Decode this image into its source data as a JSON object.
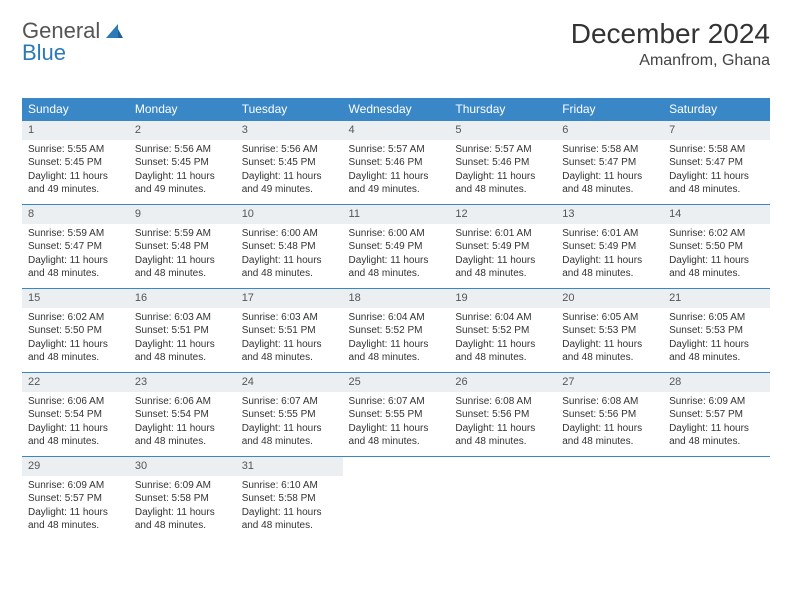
{
  "logo": {
    "word1": "General",
    "word2": "Blue"
  },
  "title": "December 2024",
  "location": "Amanfrom, Ghana",
  "colors": {
    "header_bg": "#3a87c7",
    "header_text": "#ffffff",
    "daynum_bg": "#eceff1",
    "rule": "#3a87c7",
    "logo_blue": "#2a7ab9"
  },
  "weekdays": [
    "Sunday",
    "Monday",
    "Tuesday",
    "Wednesday",
    "Thursday",
    "Friday",
    "Saturday"
  ],
  "weeks": [
    [
      {
        "n": "1",
        "sr": "Sunrise: 5:55 AM",
        "ss": "Sunset: 5:45 PM",
        "dl": "Daylight: 11 hours and 49 minutes."
      },
      {
        "n": "2",
        "sr": "Sunrise: 5:56 AM",
        "ss": "Sunset: 5:45 PM",
        "dl": "Daylight: 11 hours and 49 minutes."
      },
      {
        "n": "3",
        "sr": "Sunrise: 5:56 AM",
        "ss": "Sunset: 5:45 PM",
        "dl": "Daylight: 11 hours and 49 minutes."
      },
      {
        "n": "4",
        "sr": "Sunrise: 5:57 AM",
        "ss": "Sunset: 5:46 PM",
        "dl": "Daylight: 11 hours and 49 minutes."
      },
      {
        "n": "5",
        "sr": "Sunrise: 5:57 AM",
        "ss": "Sunset: 5:46 PM",
        "dl": "Daylight: 11 hours and 48 minutes."
      },
      {
        "n": "6",
        "sr": "Sunrise: 5:58 AM",
        "ss": "Sunset: 5:47 PM",
        "dl": "Daylight: 11 hours and 48 minutes."
      },
      {
        "n": "7",
        "sr": "Sunrise: 5:58 AM",
        "ss": "Sunset: 5:47 PM",
        "dl": "Daylight: 11 hours and 48 minutes."
      }
    ],
    [
      {
        "n": "8",
        "sr": "Sunrise: 5:59 AM",
        "ss": "Sunset: 5:47 PM",
        "dl": "Daylight: 11 hours and 48 minutes."
      },
      {
        "n": "9",
        "sr": "Sunrise: 5:59 AM",
        "ss": "Sunset: 5:48 PM",
        "dl": "Daylight: 11 hours and 48 minutes."
      },
      {
        "n": "10",
        "sr": "Sunrise: 6:00 AM",
        "ss": "Sunset: 5:48 PM",
        "dl": "Daylight: 11 hours and 48 minutes."
      },
      {
        "n": "11",
        "sr": "Sunrise: 6:00 AM",
        "ss": "Sunset: 5:49 PM",
        "dl": "Daylight: 11 hours and 48 minutes."
      },
      {
        "n": "12",
        "sr": "Sunrise: 6:01 AM",
        "ss": "Sunset: 5:49 PM",
        "dl": "Daylight: 11 hours and 48 minutes."
      },
      {
        "n": "13",
        "sr": "Sunrise: 6:01 AM",
        "ss": "Sunset: 5:49 PM",
        "dl": "Daylight: 11 hours and 48 minutes."
      },
      {
        "n": "14",
        "sr": "Sunrise: 6:02 AM",
        "ss": "Sunset: 5:50 PM",
        "dl": "Daylight: 11 hours and 48 minutes."
      }
    ],
    [
      {
        "n": "15",
        "sr": "Sunrise: 6:02 AM",
        "ss": "Sunset: 5:50 PM",
        "dl": "Daylight: 11 hours and 48 minutes."
      },
      {
        "n": "16",
        "sr": "Sunrise: 6:03 AM",
        "ss": "Sunset: 5:51 PM",
        "dl": "Daylight: 11 hours and 48 minutes."
      },
      {
        "n": "17",
        "sr": "Sunrise: 6:03 AM",
        "ss": "Sunset: 5:51 PM",
        "dl": "Daylight: 11 hours and 48 minutes."
      },
      {
        "n": "18",
        "sr": "Sunrise: 6:04 AM",
        "ss": "Sunset: 5:52 PM",
        "dl": "Daylight: 11 hours and 48 minutes."
      },
      {
        "n": "19",
        "sr": "Sunrise: 6:04 AM",
        "ss": "Sunset: 5:52 PM",
        "dl": "Daylight: 11 hours and 48 minutes."
      },
      {
        "n": "20",
        "sr": "Sunrise: 6:05 AM",
        "ss": "Sunset: 5:53 PM",
        "dl": "Daylight: 11 hours and 48 minutes."
      },
      {
        "n": "21",
        "sr": "Sunrise: 6:05 AM",
        "ss": "Sunset: 5:53 PM",
        "dl": "Daylight: 11 hours and 48 minutes."
      }
    ],
    [
      {
        "n": "22",
        "sr": "Sunrise: 6:06 AM",
        "ss": "Sunset: 5:54 PM",
        "dl": "Daylight: 11 hours and 48 minutes."
      },
      {
        "n": "23",
        "sr": "Sunrise: 6:06 AM",
        "ss": "Sunset: 5:54 PM",
        "dl": "Daylight: 11 hours and 48 minutes."
      },
      {
        "n": "24",
        "sr": "Sunrise: 6:07 AM",
        "ss": "Sunset: 5:55 PM",
        "dl": "Daylight: 11 hours and 48 minutes."
      },
      {
        "n": "25",
        "sr": "Sunrise: 6:07 AM",
        "ss": "Sunset: 5:55 PM",
        "dl": "Daylight: 11 hours and 48 minutes."
      },
      {
        "n": "26",
        "sr": "Sunrise: 6:08 AM",
        "ss": "Sunset: 5:56 PM",
        "dl": "Daylight: 11 hours and 48 minutes."
      },
      {
        "n": "27",
        "sr": "Sunrise: 6:08 AM",
        "ss": "Sunset: 5:56 PM",
        "dl": "Daylight: 11 hours and 48 minutes."
      },
      {
        "n": "28",
        "sr": "Sunrise: 6:09 AM",
        "ss": "Sunset: 5:57 PM",
        "dl": "Daylight: 11 hours and 48 minutes."
      }
    ],
    [
      {
        "n": "29",
        "sr": "Sunrise: 6:09 AM",
        "ss": "Sunset: 5:57 PM",
        "dl": "Daylight: 11 hours and 48 minutes."
      },
      {
        "n": "30",
        "sr": "Sunrise: 6:09 AM",
        "ss": "Sunset: 5:58 PM",
        "dl": "Daylight: 11 hours and 48 minutes."
      },
      {
        "n": "31",
        "sr": "Sunrise: 6:10 AM",
        "ss": "Sunset: 5:58 PM",
        "dl": "Daylight: 11 hours and 48 minutes."
      },
      null,
      null,
      null,
      null
    ]
  ]
}
